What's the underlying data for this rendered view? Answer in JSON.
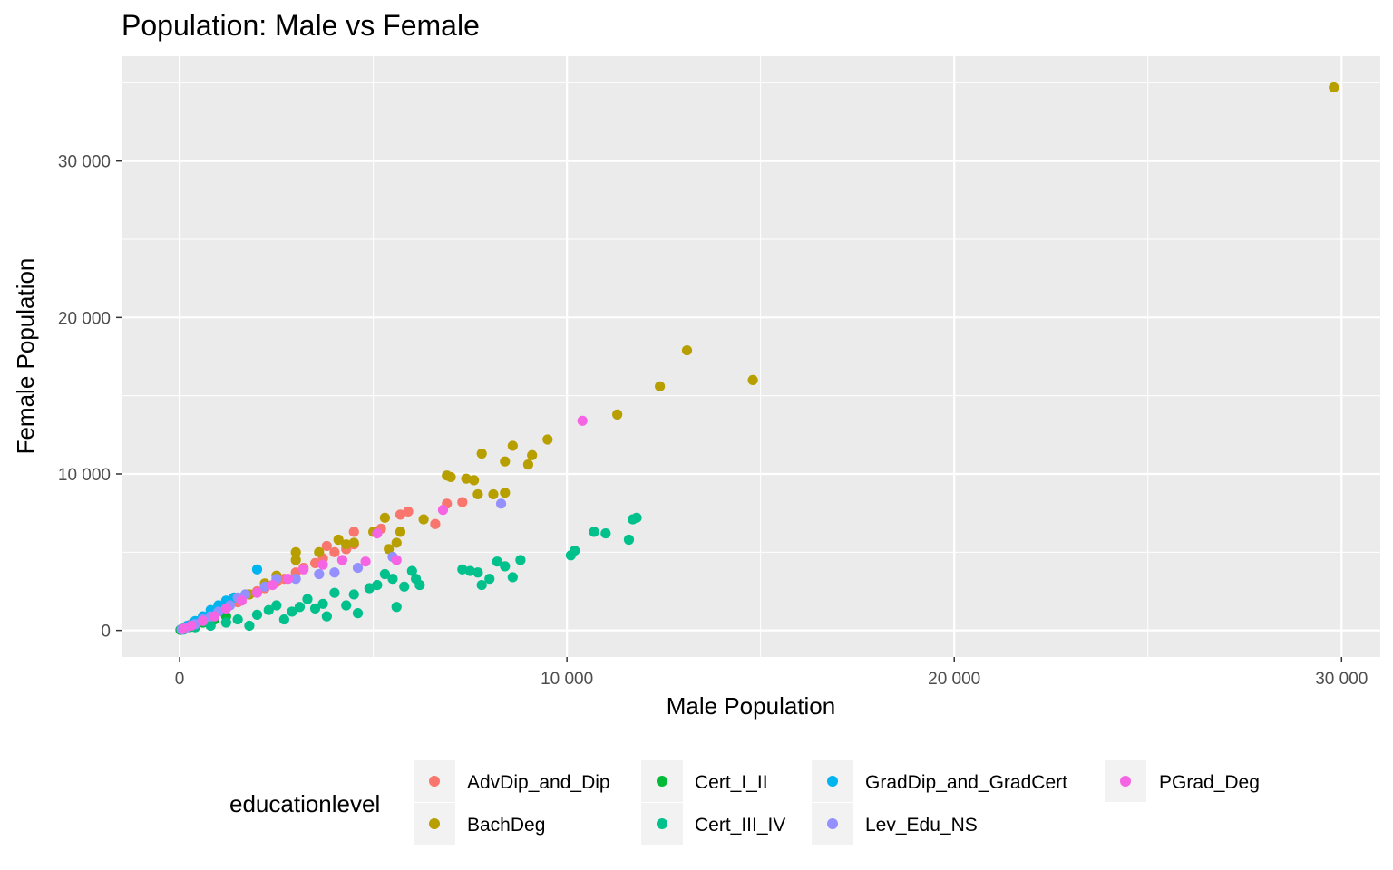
{
  "chart_data": {
    "type": "scatter",
    "title": "Population: Male vs Female",
    "xlabel": "Male Population",
    "ylabel": "Female Population",
    "xlim": [
      -1500,
      31000
    ],
    "ylim": [
      -1700,
      36700
    ],
    "x_ticks": [
      0,
      10000,
      20000,
      30000
    ],
    "x_tick_labels": [
      "0",
      "10 000",
      "20 000",
      "30 000"
    ],
    "y_ticks": [
      0,
      10000,
      20000,
      30000
    ],
    "y_tick_labels": [
      "0",
      "10 000",
      "20 000",
      "30 000"
    ],
    "grid": true,
    "legend_position": "bottom",
    "legend_title": "educationlevel",
    "series": [
      {
        "name": "AdvDip_and_Dip",
        "color": "#F8766D",
        "points": [
          [
            50,
            60
          ],
          [
            150,
            200
          ],
          [
            300,
            400
          ],
          [
            500,
            600
          ],
          [
            800,
            900
          ],
          [
            1200,
            1400
          ],
          [
            1500,
            1800
          ],
          [
            1800,
            2300
          ],
          [
            2000,
            2500
          ],
          [
            2200,
            2700
          ],
          [
            2500,
            3100
          ],
          [
            2700,
            3300
          ],
          [
            3000,
            3700
          ],
          [
            3200,
            4000
          ],
          [
            3500,
            4300
          ],
          [
            3700,
            4600
          ],
          [
            4000,
            5000
          ],
          [
            4300,
            5200
          ],
          [
            4500,
            5500
          ],
          [
            3800,
            5400
          ],
          [
            4500,
            6300
          ],
          [
            5200,
            6500
          ],
          [
            5700,
            7400
          ],
          [
            5900,
            7600
          ],
          [
            6600,
            6800
          ],
          [
            6900,
            8100
          ],
          [
            7300,
            8200
          ]
        ]
      },
      {
        "name": "BachDeg",
        "color": "#B79F00",
        "points": [
          [
            100,
            120
          ],
          [
            400,
            500
          ],
          [
            800,
            1000
          ],
          [
            1200,
            1500
          ],
          [
            1800,
            2300
          ],
          [
            2200,
            3000
          ],
          [
            2500,
            3500
          ],
          [
            3000,
            4500
          ],
          [
            3000,
            5000
          ],
          [
            3600,
            5000
          ],
          [
            4100,
            5800
          ],
          [
            4300,
            5500
          ],
          [
            4500,
            5600
          ],
          [
            5000,
            6300
          ],
          [
            5300,
            7200
          ],
          [
            5400,
            5200
          ],
          [
            5600,
            5600
          ],
          [
            5700,
            6300
          ],
          [
            6300,
            7100
          ],
          [
            6900,
            9900
          ],
          [
            7000,
            9800
          ],
          [
            7400,
            9700
          ],
          [
            7600,
            9600
          ],
          [
            7700,
            8700
          ],
          [
            7800,
            11300
          ],
          [
            8100,
            8700
          ],
          [
            8400,
            10800
          ],
          [
            8400,
            8800
          ],
          [
            8600,
            11800
          ],
          [
            9000,
            10600
          ],
          [
            9100,
            11200
          ],
          [
            9500,
            12200
          ],
          [
            11300,
            13800
          ],
          [
            12400,
            15600
          ],
          [
            13100,
            17900
          ],
          [
            14800,
            16000
          ],
          [
            29800,
            34700
          ]
        ]
      },
      {
        "name": "Cert_I_II",
        "color": "#00BA38",
        "points": [
          [
            20,
            30
          ],
          [
            100,
            100
          ],
          [
            250,
            200
          ],
          [
            400,
            350
          ],
          [
            600,
            500
          ],
          [
            900,
            700
          ],
          [
            1200,
            900
          ]
        ]
      },
      {
        "name": "Cert_III_IV",
        "color": "#00C08B",
        "points": [
          [
            100,
            50
          ],
          [
            400,
            200
          ],
          [
            800,
            300
          ],
          [
            1200,
            500
          ],
          [
            1500,
            700
          ],
          [
            1800,
            300
          ],
          [
            2000,
            1000
          ],
          [
            2300,
            1300
          ],
          [
            2500,
            1600
          ],
          [
            2700,
            700
          ],
          [
            2900,
            1200
          ],
          [
            3100,
            1500
          ],
          [
            3300,
            2000
          ],
          [
            3500,
            1400
          ],
          [
            3700,
            1700
          ],
          [
            3800,
            900
          ],
          [
            4000,
            2400
          ],
          [
            4300,
            1600
          ],
          [
            4500,
            2300
          ],
          [
            4600,
            1100
          ],
          [
            4900,
            2700
          ],
          [
            5100,
            2900
          ],
          [
            5300,
            3600
          ],
          [
            5500,
            3300
          ],
          [
            5600,
            1500
          ],
          [
            5800,
            2800
          ],
          [
            6000,
            3800
          ],
          [
            6100,
            3300
          ],
          [
            6200,
            2900
          ],
          [
            7300,
            3900
          ],
          [
            7500,
            3800
          ],
          [
            7700,
            3700
          ],
          [
            7800,
            2900
          ],
          [
            8000,
            3300
          ],
          [
            8200,
            4400
          ],
          [
            8400,
            4100
          ],
          [
            8600,
            3400
          ],
          [
            8800,
            4500
          ],
          [
            10100,
            4800
          ],
          [
            10200,
            5100
          ],
          [
            10700,
            6300
          ],
          [
            11000,
            6200
          ],
          [
            11600,
            5800
          ],
          [
            11700,
            7100
          ],
          [
            11800,
            7200
          ]
        ]
      },
      {
        "name": "GradDip_and_GradCert",
        "color": "#00B4F0",
        "points": [
          [
            50,
            80
          ],
          [
            200,
            300
          ],
          [
            400,
            600
          ],
          [
            600,
            900
          ],
          [
            800,
            1300
          ],
          [
            1000,
            1600
          ],
          [
            1200,
            1900
          ],
          [
            1400,
            2100
          ],
          [
            1700,
            2300
          ],
          [
            2000,
            3900
          ]
        ]
      },
      {
        "name": "Lev_Edu_NS",
        "color": "#9590FF",
        "points": [
          [
            50,
            50
          ],
          [
            200,
            200
          ],
          [
            400,
            400
          ],
          [
            600,
            700
          ],
          [
            800,
            900
          ],
          [
            1000,
            1200
          ],
          [
            1300,
            1600
          ],
          [
            1500,
            2100
          ],
          [
            1700,
            2300
          ],
          [
            2200,
            2800
          ],
          [
            2500,
            3300
          ],
          [
            3000,
            3300
          ],
          [
            3600,
            3600
          ],
          [
            4000,
            3700
          ],
          [
            4600,
            4000
          ],
          [
            5500,
            4700
          ],
          [
            8300,
            8100
          ]
        ]
      },
      {
        "name": "PGrad_Deg",
        "color": "#F564E3",
        "points": [
          [
            100,
            100
          ],
          [
            300,
            300
          ],
          [
            600,
            600
          ],
          [
            900,
            900
          ],
          [
            1200,
            1400
          ],
          [
            1600,
            1900
          ],
          [
            2000,
            2400
          ],
          [
            2400,
            2900
          ],
          [
            2800,
            3300
          ],
          [
            3200,
            3900
          ],
          [
            3700,
            4200
          ],
          [
            4200,
            4500
          ],
          [
            4800,
            4400
          ],
          [
            5100,
            6200
          ],
          [
            5600,
            4500
          ],
          [
            6800,
            7700
          ],
          [
            10400,
            13400
          ]
        ]
      }
    ]
  }
}
